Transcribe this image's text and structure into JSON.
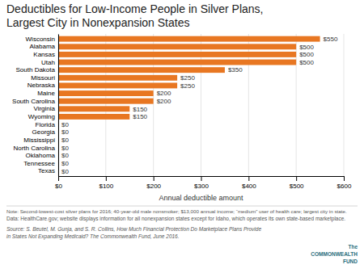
{
  "chart_data": {
    "type": "bar",
    "orientation": "horizontal",
    "title": "Deductibles for Low-Income People in Silver Plans,",
    "subtitle": "Largest City in Nonexpansion States",
    "x_label": "Annual deductible amount",
    "categories": [
      "Wisconsin",
      "Alabama",
      "Kansas",
      "Utah",
      "South Dakota",
      "Missouri",
      "Nebraska",
      "Maine",
      "South Carolina",
      "Virginia",
      "Wyoming",
      "Florida",
      "Georgia",
      "Mississippi",
      "North Carolina",
      "Oklahoma",
      "Tennessee",
      "Texas"
    ],
    "values": [
      550,
      500,
      500,
      500,
      350,
      250,
      250,
      200,
      200,
      150,
      150,
      0,
      0,
      0,
      0,
      0,
      0,
      0
    ],
    "value_labels": [
      "$550",
      "$500",
      "$500",
      "$500",
      "$350",
      "$250",
      "$250",
      "$200",
      "$200",
      "$150",
      "$150",
      "$0",
      "$0",
      "$0",
      "$0",
      "$0",
      "$0",
      "$0"
    ],
    "data_labels": true,
    "color": "#E87722",
    "xlim": [
      0,
      600
    ],
    "xticks": [
      {
        "value": 0,
        "label": "$0"
      },
      {
        "value": 100,
        "label": "$100"
      },
      {
        "value": 200,
        "label": "$200"
      },
      {
        "value": 300,
        "label": "$300"
      },
      {
        "value": 400,
        "label": "$400"
      },
      {
        "value": 500,
        "label": "$500"
      },
      {
        "value": 600,
        "label": "$600"
      }
    ],
    "grid": true,
    "annotations": [
      "Note: Second-lowest-cost silver plans for 2016; 40-year-old male nonsmoker; $13,000 annual income; “medium” user of health care; largest city in state.",
      "Data: HealthCare.gov; website displays information for all nonexpansion states except for Idaho, which operates its own state-based marketplace.",
      "Source: S. Beutel, M. Gunja, and S. R. Collins, How Much Financial Protection Do Marketplace Plans Provide",
      "in States Not Expanding Medicaid? The Commonwealth Fund, June 2016.",
      "The",
      "COMMONWEALTH",
      "FUND"
    ]
  }
}
